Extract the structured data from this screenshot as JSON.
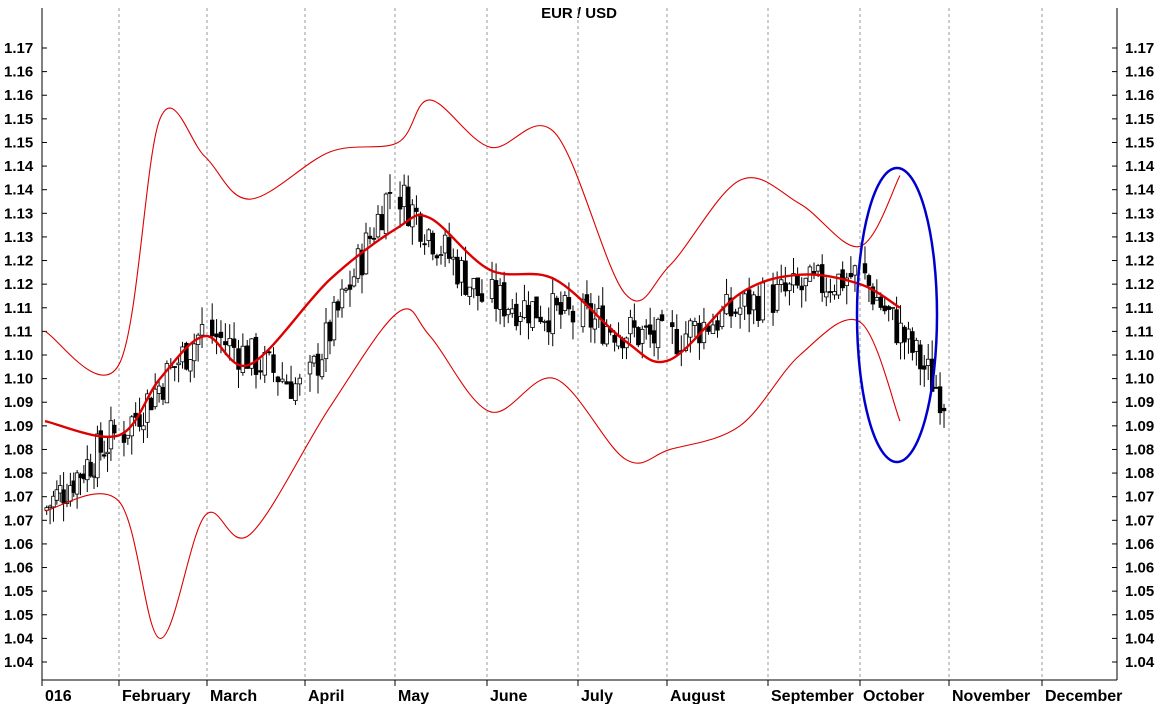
{
  "chart_data": {
    "type": "candlestick",
    "title": "EUR / USD",
    "x_labels": [
      "016",
      "February",
      "March",
      "April",
      "May",
      "June",
      "July",
      "August",
      "September",
      "October",
      "November",
      "December"
    ],
    "y_tick_labels": [
      "1.17",
      "1.16",
      "1.16",
      "1.15",
      "1.15",
      "1.14",
      "1.14",
      "1.13",
      "1.13",
      "1.12",
      "1.12",
      "1.11",
      "1.11",
      "1.10",
      "1.10",
      "1.09",
      "1.09",
      "1.08",
      "1.08",
      "1.07",
      "1.07",
      "1.06",
      "1.06",
      "1.05",
      "1.05",
      "1.04",
      "1.04"
    ],
    "ylim": [
      1.0375,
      1.1725
    ],
    "grid": "vertical month separators (dashed)",
    "series": [
      {
        "kind": "ohlc",
        "approx_closes": [
          {
            "period": "January",
            "from": 1.072,
            "to": 1.088
          },
          {
            "period": "February",
            "from": 1.088,
            "to": 1.11
          },
          {
            "period": "March",
            "from": 1.11,
            "to": 1.098
          },
          {
            "period": "April",
            "from": 1.098,
            "to": 1.14
          },
          {
            "period": "May",
            "from": 1.14,
            "to": 1.117
          },
          {
            "period": "June",
            "from": 1.117,
            "to": 1.113
          },
          {
            "period": "July",
            "from": 1.113,
            "to": 1.108
          },
          {
            "period": "August",
            "from": 1.108,
            "to": 1.117
          },
          {
            "period": "September",
            "from": 1.117,
            "to": 1.122
          },
          {
            "period": "October",
            "from": 1.122,
            "to": 1.096
          }
        ]
      },
      {
        "kind": "moving_average",
        "color": "#dd0000",
        "points": [
          [
            "Jan",
            1.091
          ],
          [
            "Feb-start",
            1.088
          ],
          [
            "Feb-mid",
            1.1
          ],
          [
            "Mar-start",
            1.109
          ],
          [
            "Mar-end",
            1.103
          ],
          [
            "Apr-mid",
            1.121
          ],
          [
            "May-start",
            1.132
          ],
          [
            "May-mid",
            1.134
          ],
          [
            "Jun-start",
            1.123
          ],
          [
            "Jun-end",
            1.121
          ],
          [
            "Jul-mid",
            1.108
          ],
          [
            "Aug-start",
            1.104
          ],
          [
            "Aug-end",
            1.118
          ],
          [
            "Sep-mid",
            1.122
          ],
          [
            "Oct-start",
            1.12
          ],
          [
            "Oct-mid",
            1.115
          ]
        ]
      },
      {
        "kind": "upper_band",
        "color": "#dd0000",
        "points": [
          [
            "Jan",
            1.11
          ],
          [
            "Feb-start",
            1.103
          ],
          [
            "Feb-mid",
            1.155
          ],
          [
            "Mar-start",
            1.147
          ],
          [
            "Mar-end",
            1.138
          ],
          [
            "Apr-mid",
            1.148
          ],
          [
            "May-start",
            1.15
          ],
          [
            "May-mid",
            1.159
          ],
          [
            "Jun-start",
            1.149
          ],
          [
            "Jun-end",
            1.152
          ],
          [
            "Jul-mid",
            1.118
          ],
          [
            "Aug-start",
            1.124
          ],
          [
            "Aug-end",
            1.142
          ],
          [
            "Sep-mid",
            1.137
          ],
          [
            "Oct-start",
            1.128
          ],
          [
            "Oct-mid",
            1.143
          ]
        ]
      },
      {
        "kind": "lower_band",
        "color": "#dd0000",
        "points": [
          [
            "Jan",
            1.072
          ],
          [
            "Feb-start",
            1.074
          ],
          [
            "Feb-mid",
            1.045
          ],
          [
            "Mar-start",
            1.071
          ],
          [
            "Mar-end",
            1.067
          ],
          [
            "Apr-mid",
            1.094
          ],
          [
            "May-start",
            1.114
          ],
          [
            "May-mid",
            1.109
          ],
          [
            "Jun-start",
            1.093
          ],
          [
            "Jun-end",
            1.1
          ],
          [
            "Jul-mid",
            1.083
          ],
          [
            "Aug-start",
            1.085
          ],
          [
            "Aug-end",
            1.09
          ],
          [
            "Sep-mid",
            1.105
          ],
          [
            "Oct-start",
            1.112
          ],
          [
            "Oct-mid",
            1.091
          ]
        ]
      }
    ],
    "annotations": [
      {
        "shape": "ellipse",
        "color": "#0000cc",
        "around": "October"
      }
    ],
    "colors": {
      "candle": "#000000",
      "bands": "#dd0000",
      "highlight": "#0000cc",
      "separator": "#999999"
    }
  }
}
